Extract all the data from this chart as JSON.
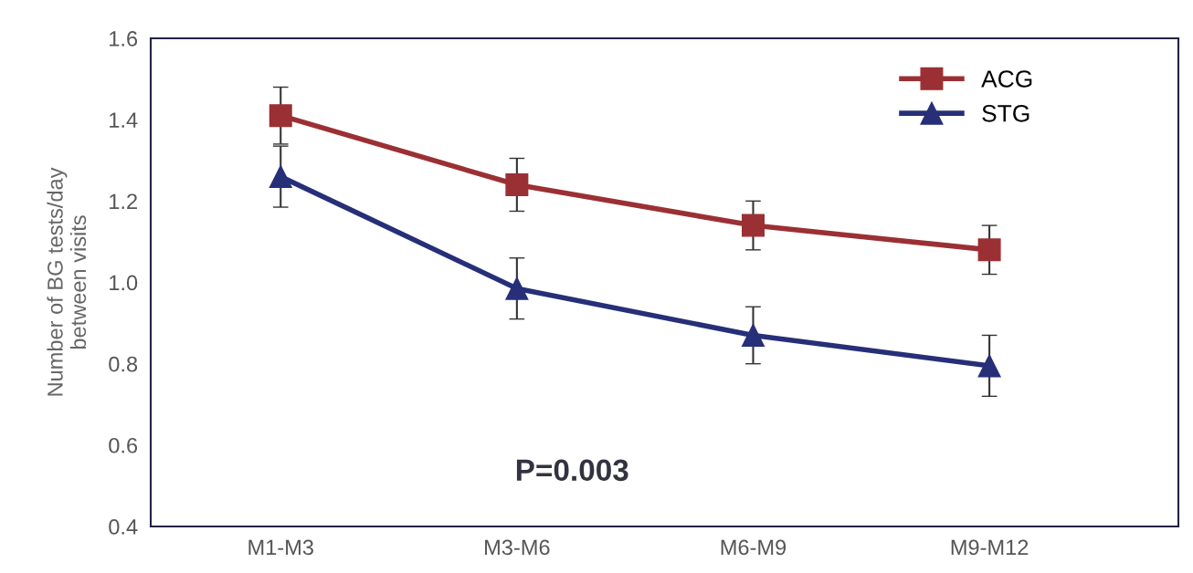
{
  "chart_data": {
    "type": "line",
    "ylabel": "Number of BG tests/day\nbetween visits",
    "categories": [
      "M1-M3",
      "M3-M6",
      "M6-M9",
      "M9-M12"
    ],
    "series": [
      {
        "name": "ACG",
        "color": "#9b3034",
        "marker": "square",
        "values": [
          1.41,
          1.24,
          1.14,
          1.08
        ],
        "errors": [
          0.07,
          0.065,
          0.06,
          0.06
        ]
      },
      {
        "name": "STG",
        "color": "#262f78",
        "marker": "triangle",
        "values": [
          1.26,
          0.985,
          0.87,
          0.795
        ],
        "errors": [
          0.075,
          0.075,
          0.07,
          0.075
        ]
      }
    ],
    "ylim": [
      0.4,
      1.6
    ],
    "yticks": [
      0.4,
      0.6,
      0.8,
      {
        "value": 1,
        "label": "1.0"
      },
      1.2,
      1.4,
      1.6
    ],
    "grid": false,
    "legend": "top right",
    "annotations": [
      "P=0.003"
    ]
  }
}
